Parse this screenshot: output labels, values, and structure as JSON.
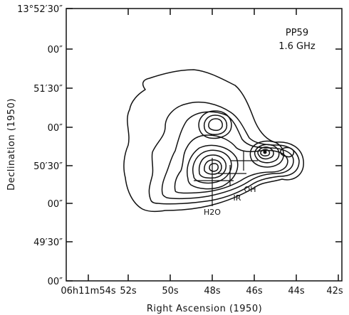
{
  "figure": {
    "title": "PP59",
    "subtitle": "1.6 GHz",
    "xlabel": "Right Ascension (1950)",
    "ylabel": "Declination (1950)"
  },
  "axes": {
    "x_ticks": [
      "06h11m54s",
      "52s",
      "50s",
      "48s",
      "46s",
      "44s",
      "42s"
    ],
    "y_ticks": [
      "13°52′30″",
      "00″",
      "51′30″",
      "00″",
      "50′30″",
      "00″",
      "49′30″",
      "00″"
    ]
  },
  "annotations": {
    "water_maser": "H2O",
    "infrared_source": "IR",
    "oh_maser": "OH"
  },
  "colors": {
    "ink": "#111111",
    "background": "#ffffff"
  }
}
